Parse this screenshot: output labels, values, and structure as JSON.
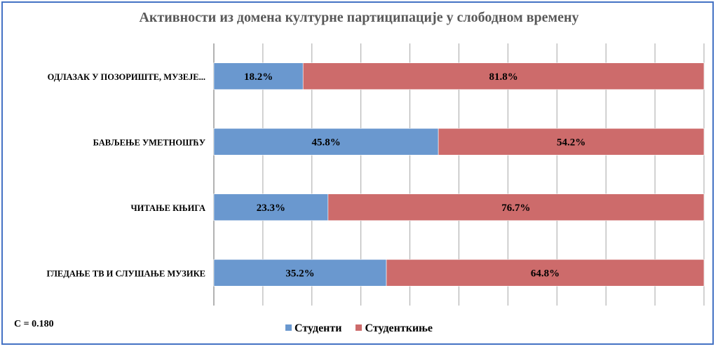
{
  "chart_data": {
    "type": "bar",
    "orientation": "horizontal",
    "stacked": true,
    "percent": true,
    "title": "Активности из домена културне партиципације у слободном времену",
    "categories": [
      "ОДЛАЗАК У ПОЗОРИШТЕ, МУЗЕЈЕ...",
      "БАВЉЕЊЕ УМЕТНОШЋУ",
      "ЧИТАЊЕ КЊИГА",
      "ГЛЕДАЊЕ ТВ И СЛУШАЊЕ МУЗИКЕ"
    ],
    "series": [
      {
        "name": "Студенти",
        "color": "#6a98cf",
        "values": [
          18.2,
          45.8,
          23.3,
          35.2
        ],
        "labels": [
          "18.2%",
          "45.8%",
          "23.3%",
          "35.2%"
        ]
      },
      {
        "name": "Студенткиње",
        "color": "#cd6b6b",
        "values": [
          81.8,
          54.2,
          76.7,
          64.8
        ],
        "labels": [
          "81.8%",
          "54.2%",
          "76.7%",
          "64.8%"
        ]
      }
    ],
    "xlim": [
      0,
      100
    ],
    "grid": true,
    "legend_position": "bottom",
    "annotation": "C = 0.180"
  }
}
